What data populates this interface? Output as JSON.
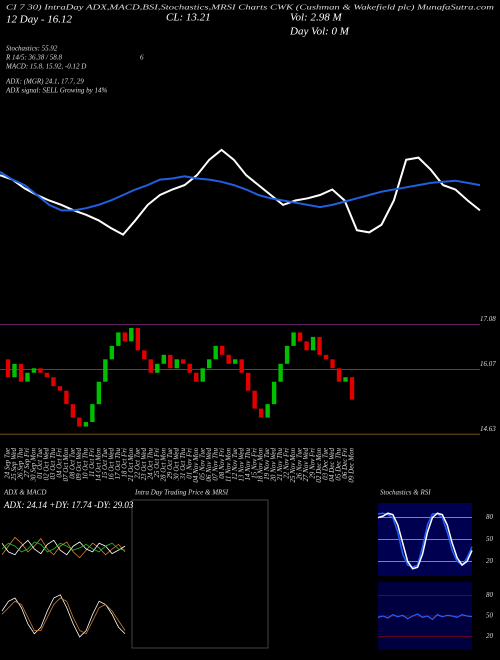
{
  "header": {
    "line1": "CI 7 30) IntraDay ADX,MACD,BSI,Stochastics,MRSI Charts CWK (Cushman & Wakefield plc) MunafaSutra.com",
    "ema": "12 Day - 16.12",
    "close": "CL: 13.21",
    "vol": "Vol: 2.98 M",
    "dayvol": "Day Vol: 0 M",
    "stoch": "Stochastics: 55.92",
    "r": "R 14/5: 36.38 / 58.8",
    "six": "6",
    "macd": "MACD: 15.8, 15.92, -0.12 D",
    "adx": "ADX: (MGR) 24.1, 17.7, 29",
    "signal": "ADX signal: SELL Growing by 14%"
  },
  "chart_data": [
    {
      "type": "line",
      "ylim": [
        0,
        100
      ],
      "series": [
        {
          "color": "#ffffff",
          "values": [
            68,
            64,
            56,
            50,
            45,
            41,
            36,
            32,
            27,
            20,
            14,
            27,
            41,
            50,
            55,
            59,
            68,
            82,
            91,
            82,
            68,
            59,
            50,
            41,
            45,
            47,
            50,
            55,
            45,
            18,
            16,
            23,
            45,
            82,
            84,
            73,
            59,
            55,
            45,
            36
          ]
        },
        {
          "color": "#1f5fe0",
          "values": [
            71,
            64,
            59,
            50,
            41,
            36,
            36,
            38,
            41,
            45,
            50,
            55,
            59,
            64,
            65,
            67,
            65,
            64,
            62,
            59,
            55,
            50,
            47,
            45,
            43,
            41,
            39,
            41,
            44,
            47,
            50,
            53,
            55,
            57,
            59,
            61,
            62,
            63,
            61,
            59
          ]
        }
      ]
    },
    {
      "type": "candlestick",
      "ylim": [
        14.5,
        17.4
      ],
      "up_color": "#00c000",
      "down_color": "#e00000",
      "levels": [
        17.08,
        16.07,
        14.63
      ],
      "categories": [
        "24 Sep Tue",
        "25 Sep Wed",
        "26 Sep Thu",
        "27 Sep Fri",
        "30 Sep Mon",
        "01 Oct Tue",
        "02 Oct Wed",
        "03 Oct Thu",
        "04 Oct Fri",
        "07 Oct Mon",
        "08 Oct Tue",
        "09 Oct Wed",
        "10 Oct Thu",
        "11 Oct Fri",
        "14 Oct Mon",
        "15 Oct Tue",
        "16 Oct Wed",
        "17 Oct Thu",
        "18 Oct Fri",
        "21 Oct Mon",
        "22 Oct Tue",
        "23 Oct Wed",
        "24 Oct Thu",
        "25 Oct Fri",
        "28 Oct Mon",
        "29 Oct Tue",
        "30 Oct Wed",
        "31 Oct Thu",
        "01 Nov Fri",
        "04 Nov Mon",
        "05 Nov Tue",
        "06 Nov Wed",
        "07 Nov Thu",
        "08 Nov Fri",
        "11 Nov Mon",
        "12 Nov Tue",
        "13 Nov Wed",
        "14 Nov Thu",
        "15 Nov Fri",
        "18 Nov Mon",
        "19 Nov Tue",
        "20 Nov Wed",
        "21 Nov Thu",
        "22 Nov Fri",
        "25 Nov Mon",
        "26 Nov Tue",
        "27 Nov Wed",
        "29 Nov Fri",
        "02 Dec Mon",
        "03 Dec Tue",
        "04 Dec Wed",
        "05 Dec Thu",
        "06 Dec Fri",
        "09 Dec Mon"
      ],
      "open": [
        16.3,
        15.9,
        16.2,
        15.8,
        16.0,
        16.1,
        16.0,
        15.9,
        15.7,
        15.6,
        15.3,
        15.0,
        14.8,
        14.9,
        15.3,
        15.8,
        16.3,
        16.6,
        16.9,
        16.7,
        17.0,
        16.5,
        16.3,
        16.0,
        16.2,
        16.4,
        16.1,
        16.3,
        16.2,
        16.0,
        15.8,
        16.1,
        16.3,
        16.6,
        16.4,
        16.2,
        16.3,
        16.0,
        15.6,
        15.2,
        15.0,
        15.3,
        15.8,
        16.2,
        16.6,
        16.9,
        16.7,
        16.5,
        16.8,
        16.4,
        16.3,
        16.1,
        15.8,
        15.9
      ],
      "close": [
        15.9,
        16.2,
        15.8,
        16.0,
        16.1,
        16.0,
        15.9,
        15.7,
        15.6,
        15.3,
        15.0,
        14.8,
        14.9,
        15.3,
        15.8,
        16.3,
        16.6,
        16.9,
        16.7,
        17.0,
        16.5,
        16.3,
        16.0,
        16.2,
        16.4,
        16.1,
        16.3,
        16.2,
        16.0,
        15.8,
        16.1,
        16.3,
        16.6,
        16.4,
        16.2,
        16.3,
        16.0,
        15.6,
        15.2,
        15.0,
        15.3,
        15.8,
        16.2,
        16.6,
        16.9,
        16.7,
        16.5,
        16.8,
        16.4,
        16.3,
        16.1,
        15.8,
        15.9,
        15.4
      ]
    },
    {
      "type": "line",
      "title": "ADX & MACD",
      "subtitle": "ADX: 24.14  +DY: 17.74  -DY: 29.03",
      "ylim": [
        0,
        100
      ],
      "series": [
        {
          "color": "#d08030",
          "values": [
            40,
            55,
            70,
            60,
            45,
            55,
            68,
            50,
            40,
            55,
            62,
            45,
            35,
            48,
            60,
            52,
            40,
            50,
            58,
            45
          ]
        },
        {
          "color": "#ffffff",
          "values": [
            60,
            45,
            40,
            55,
            65,
            50,
            42,
            58,
            65,
            48,
            40,
            55,
            62,
            50,
            45,
            60,
            55,
            42,
            48,
            55
          ]
        },
        {
          "color": "#20c020",
          "values": [
            50,
            60,
            55,
            45,
            50,
            62,
            58,
            45,
            50,
            60,
            55,
            48,
            52,
            58,
            50,
            45,
            55,
            60,
            50,
            48
          ]
        }
      ]
    },
    {
      "type": "line",
      "ylim": [
        -1,
        1
      ],
      "series": [
        {
          "color": "#ffffff",
          "values": [
            0.2,
            0.5,
            0.6,
            0.3,
            -0.2,
            -0.5,
            -0.3,
            0.2,
            0.6,
            0.7,
            0.3,
            -0.2,
            -0.6,
            -0.4,
            0.1,
            0.5,
            0.4,
            0.1,
            -0.3,
            -0.5
          ]
        },
        {
          "color": "#d08030",
          "values": [
            0.1,
            0.3,
            0.5,
            0.4,
            0.0,
            -0.4,
            -0.4,
            0.0,
            0.4,
            0.6,
            0.5,
            0.0,
            -0.4,
            -0.5,
            -0.1,
            0.3,
            0.4,
            0.2,
            -0.1,
            -0.4
          ]
        }
      ]
    },
    {
      "type": "line",
      "title": "Intra Day Trading Price & MRSI",
      "ylim": [
        0,
        100
      ],
      "series": []
    },
    {
      "type": "line",
      "title": "Stochastics & RSI",
      "ylim": [
        0,
        100
      ],
      "yticks": [
        80,
        50,
        20
      ],
      "background": "#000050",
      "grid_color": "#ffffff",
      "series": [
        {
          "color": "#2060ff",
          "values": [
            85,
            86,
            84,
            80,
            60,
            30,
            15,
            12,
            15,
            40,
            70,
            85,
            85,
            80,
            60,
            35,
            20,
            15,
            25,
            40
          ]
        },
        {
          "color": "#ffffff",
          "values": [
            80,
            82,
            86,
            84,
            70,
            45,
            20,
            10,
            12,
            30,
            60,
            80,
            86,
            84,
            70,
            45,
            25,
            15,
            20,
            35
          ]
        }
      ]
    },
    {
      "type": "line",
      "ylim": [
        0,
        100
      ],
      "yticks": [
        80,
        50,
        20
      ],
      "background": "#000040",
      "grid_color": "#c00000",
      "series": [
        {
          "color": "#2060ff",
          "values": [
            48,
            50,
            47,
            52,
            49,
            51,
            46,
            50,
            53,
            48,
            50,
            45,
            52,
            49,
            51,
            50,
            48,
            52,
            50,
            49
          ]
        }
      ]
    }
  ]
}
